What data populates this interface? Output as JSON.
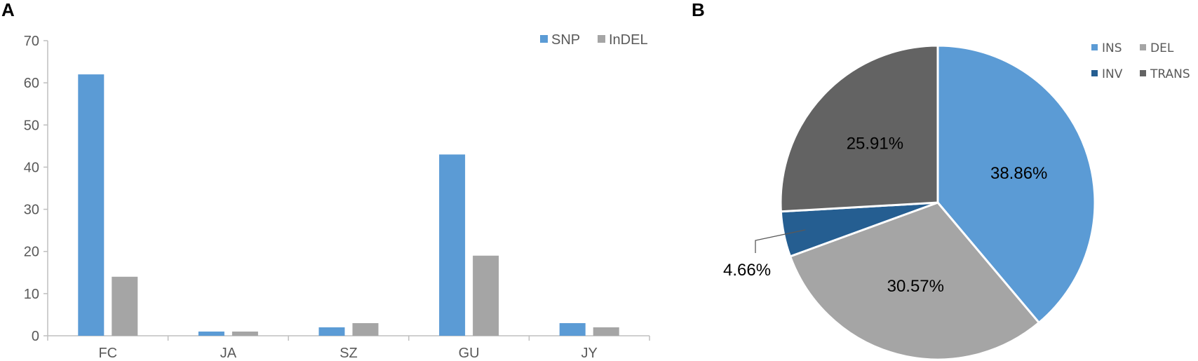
{
  "chart_data": [
    {
      "type": "bar",
      "panel_label": "A",
      "categories": [
        "FC",
        "JA",
        "SZ",
        "GU",
        "JY"
      ],
      "series": [
        {
          "name": "SNP",
          "values": [
            62,
            1,
            2,
            43,
            3
          ],
          "color": "#5b9bd5"
        },
        {
          "name": "InDEL",
          "values": [
            14,
            1,
            3,
            19,
            2
          ],
          "color": "#a5a5a5"
        }
      ],
      "yticks": [
        "0",
        "10",
        "20",
        "30",
        "40",
        "50",
        "60",
        "70"
      ],
      "ylim": [
        0,
        70
      ],
      "grid": false,
      "legend": "top-right"
    },
    {
      "type": "pie",
      "panel_label": "B",
      "slices": [
        {
          "name": "INS",
          "value": 38.86,
          "label": "38.86%",
          "color": "#5b9bd5"
        },
        {
          "name": "DEL",
          "value": 30.57,
          "label": "30.57%",
          "color": "#a5a5a5"
        },
        {
          "name": "INV",
          "value": 4.66,
          "label": "4.66%",
          "color": "#255e91"
        },
        {
          "name": "TRANS",
          "value": 25.91,
          "label": "25.91%",
          "color": "#636363"
        }
      ],
      "start_angle_deg": 0,
      "direction": "clockwise",
      "legend": "top-right"
    }
  ]
}
